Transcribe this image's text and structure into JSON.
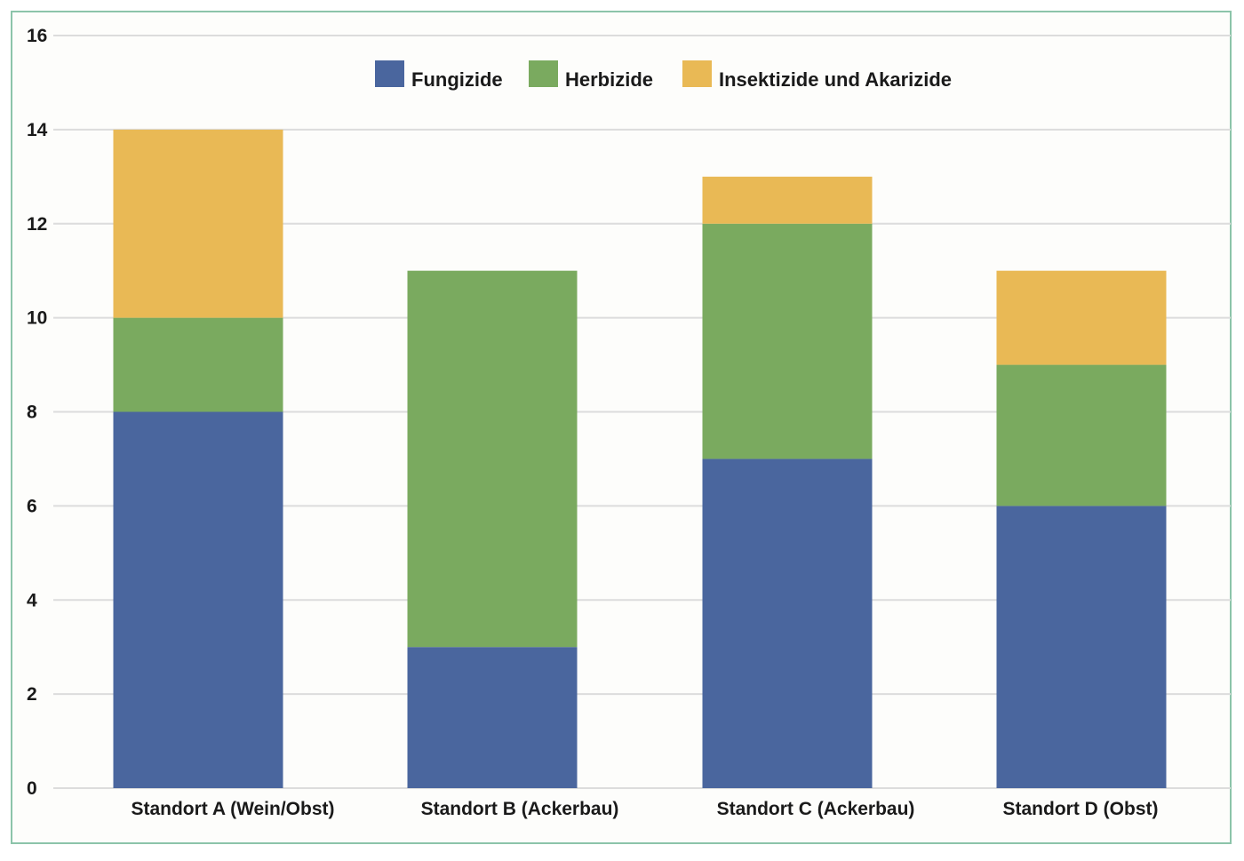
{
  "chart_data": {
    "type": "bar",
    "stacked": true,
    "categories": [
      "Standort A (Wein/Obst)",
      "Standort B (Ackerbau)",
      "Standort C (Ackerbau)",
      "Standort D (Obst)"
    ],
    "series": [
      {
        "name": "Fungizide",
        "color": "#4a669e",
        "values": [
          8,
          3,
          7,
          6
        ]
      },
      {
        "name": "Herbizide",
        "color": "#7aaa5f",
        "values": [
          2,
          8,
          5,
          3
        ]
      },
      {
        "name": "Insektizide und Akarizide",
        "color": "#e9b955",
        "values": [
          4,
          0,
          1,
          2
        ]
      }
    ],
    "title": "",
    "xlabel": "",
    "ylabel": "",
    "ylim": [
      0,
      16
    ],
    "yticks": [
      "0",
      "2",
      "4",
      "6",
      "8",
      "10",
      "12",
      "14",
      "16"
    ],
    "grid": true,
    "legend_position": "top-center",
    "frame_color": "#8cc4aa"
  }
}
